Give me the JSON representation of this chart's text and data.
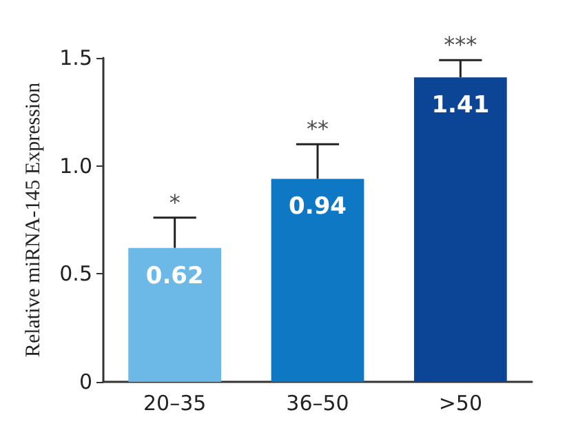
{
  "chart_data": {
    "type": "bar",
    "ylabel": "Relative miRNA-145 Expression",
    "categories": [
      "20–35",
      "36–50",
      ">50"
    ],
    "values": [
      0.62,
      0.94,
      1.41
    ],
    "colors": [
      "#6cb8e6",
      "#0f78c4",
      "#0d4596"
    ],
    "errors": [
      [
        0.62,
        0.76
      ],
      [
        0.94,
        1.1
      ],
      [
        1.41,
        1.49
      ]
    ],
    "data_labels": true,
    "ylim": [
      0,
      1.5
    ],
    "yticks": [
      0,
      0.5,
      {
        "value": 1,
        "label": "1.0"
      },
      1.5
    ],
    "annotations": [
      "*",
      "**",
      "***"
    ],
    "grid": false
  }
}
